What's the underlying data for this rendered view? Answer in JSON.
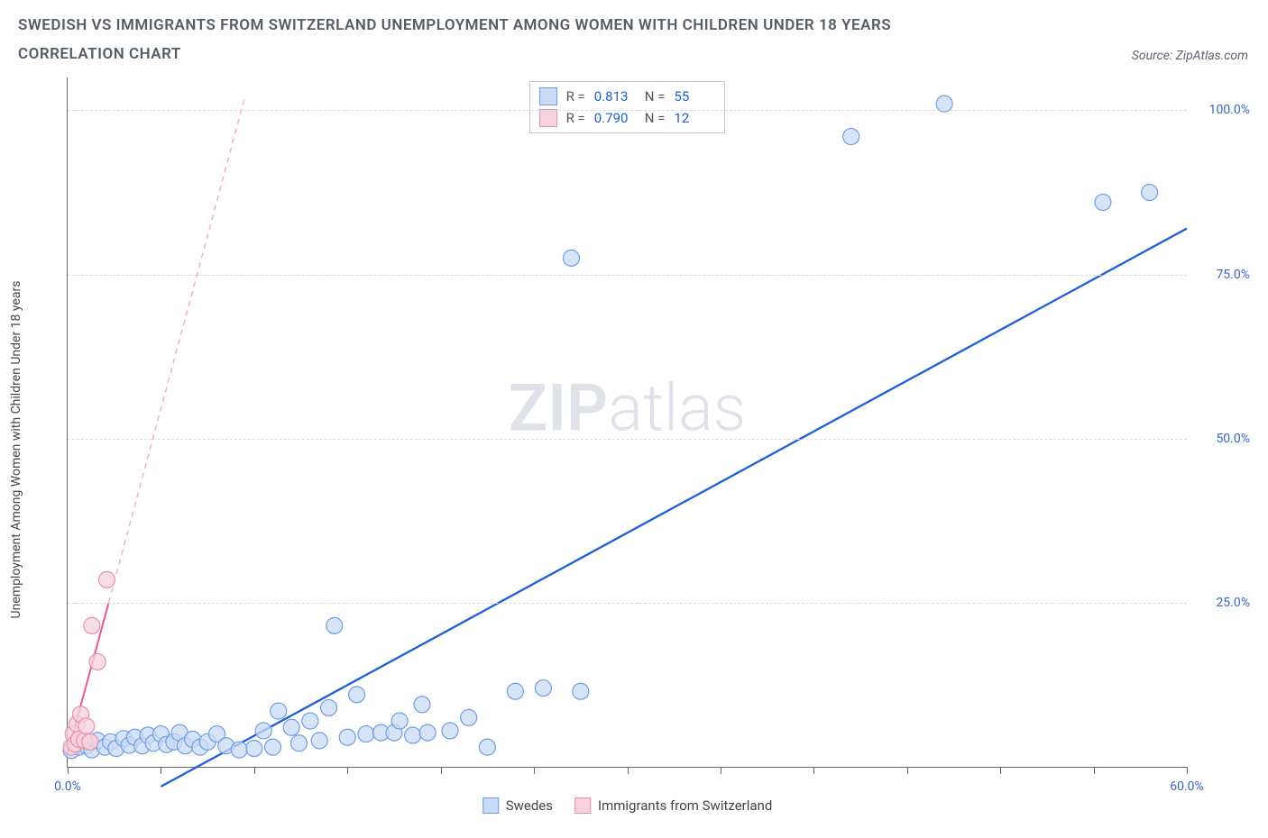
{
  "title_line1": "SWEDISH VS IMMIGRANTS FROM SWITZERLAND UNEMPLOYMENT AMONG WOMEN WITH CHILDREN UNDER 18 YEARS",
  "title_line2": "CORRELATION CHART",
  "source_label": "Source: ZipAtlas.com",
  "watermark": {
    "zip": "ZIP",
    "atlas": "atlas",
    "color": "#dfe3e9",
    "fontsize": 72
  },
  "y_axis_label": "Unemployment Among Women with Children Under 18 years",
  "chart": {
    "type": "scatter",
    "background_color": "#ffffff",
    "grid_color": "#d6dbe2",
    "xlim": [
      0,
      60
    ],
    "ylim": [
      0,
      105
    ],
    "xticks": [
      0,
      5,
      10,
      15,
      20,
      25,
      30,
      35,
      40,
      45,
      50,
      55,
      60
    ],
    "xtick_labels": {
      "0": "0.0%",
      "60": "60.0%"
    },
    "yticks": [
      25,
      50,
      75,
      100
    ],
    "ytick_labels": {
      "25": "25.0%",
      "50": "50.0%",
      "75": "75.0%",
      "100": "100.0%"
    },
    "marker_radius": 9,
    "marker_stroke_width": 1.2,
    "series": [
      {
        "key": "swedes",
        "label": "Swedes",
        "fill": "#c9dbf6",
        "stroke": "#6e9de0",
        "stats": {
          "R": "0.813",
          "N": "55"
        },
        "trend": {
          "x1": 5,
          "y1": -3,
          "x2": 60,
          "y2": 82,
          "color": "#205ed6",
          "width": 2.3,
          "dash": "none"
        },
        "data": [
          [
            0.2,
            2.5
          ],
          [
            0.6,
            3.0
          ],
          [
            1.0,
            3.2
          ],
          [
            1.3,
            2.6
          ],
          [
            1.6,
            4.0
          ],
          [
            2.0,
            3.0
          ],
          [
            2.3,
            3.8
          ],
          [
            2.6,
            2.8
          ],
          [
            3.0,
            4.3
          ],
          [
            3.3,
            3.3
          ],
          [
            3.6,
            4.5
          ],
          [
            4.0,
            3.2
          ],
          [
            4.3,
            4.8
          ],
          [
            4.6,
            3.6
          ],
          [
            5.0,
            5.0
          ],
          [
            5.3,
            3.4
          ],
          [
            5.7,
            3.8
          ],
          [
            6.0,
            5.2
          ],
          [
            6.3,
            3.2
          ],
          [
            6.7,
            4.2
          ],
          [
            7.1,
            3.0
          ],
          [
            7.5,
            3.8
          ],
          [
            8.0,
            5.0
          ],
          [
            8.5,
            3.2
          ],
          [
            9.2,
            2.6
          ],
          [
            10.0,
            2.8
          ],
          [
            10.5,
            5.5
          ],
          [
            11.0,
            3.0
          ],
          [
            11.3,
            8.5
          ],
          [
            12.0,
            6.0
          ],
          [
            12.4,
            3.6
          ],
          [
            13.0,
            7.0
          ],
          [
            13.5,
            4.0
          ],
          [
            14.0,
            9.0
          ],
          [
            14.3,
            21.5
          ],
          [
            15.0,
            4.5
          ],
          [
            15.5,
            11.0
          ],
          [
            16.0,
            5.0
          ],
          [
            16.8,
            5.2
          ],
          [
            17.5,
            5.2
          ],
          [
            17.8,
            7.0
          ],
          [
            18.5,
            4.8
          ],
          [
            19.0,
            9.5
          ],
          [
            19.3,
            5.2
          ],
          [
            20.5,
            5.5
          ],
          [
            21.5,
            7.5
          ],
          [
            22.5,
            3.0
          ],
          [
            24.0,
            11.5
          ],
          [
            25.5,
            12.0
          ],
          [
            27.0,
            77.5
          ],
          [
            27.5,
            11.5
          ],
          [
            42.0,
            96.0
          ],
          [
            47.0,
            101.0
          ],
          [
            55.5,
            86.0
          ],
          [
            58.0,
            87.5
          ]
        ]
      },
      {
        "key": "swiss",
        "label": "Immigrants from Switzerland",
        "fill": "#f7d1de",
        "stroke": "#e78fb0",
        "stats": {
          "R": "0.790",
          "N": "12"
        },
        "trend": {
          "x1": 0,
          "y1": 2,
          "x2": 2.2,
          "y2": 25,
          "color": "#ea5a8d",
          "width": 2.0,
          "dash": "none"
        },
        "trend_ext": {
          "x1": 2.2,
          "y1": 25,
          "x2": 9.5,
          "y2": 102,
          "color": "#f3aac1",
          "width": 1.4,
          "dash": "6,5"
        },
        "data": [
          [
            0.2,
            3.0
          ],
          [
            0.3,
            5.0
          ],
          [
            0.4,
            3.5
          ],
          [
            0.5,
            6.5
          ],
          [
            0.6,
            4.2
          ],
          [
            0.7,
            8.0
          ],
          [
            0.9,
            4.0
          ],
          [
            1.0,
            6.2
          ],
          [
            1.2,
            3.8
          ],
          [
            1.3,
            21.5
          ],
          [
            1.6,
            16.0
          ],
          [
            2.1,
            28.5
          ]
        ]
      }
    ],
    "legend_top": {
      "R_label": "R =",
      "N_label": "N ="
    },
    "legend_bottom": [
      {
        "key": "swedes",
        "label": "Swedes",
        "fill": "#c9dbf6",
        "stroke": "#6e9de0"
      },
      {
        "key": "swiss",
        "label": "Immigrants from Switzerland",
        "fill": "#f7d1de",
        "stroke": "#e78fb0"
      }
    ]
  }
}
